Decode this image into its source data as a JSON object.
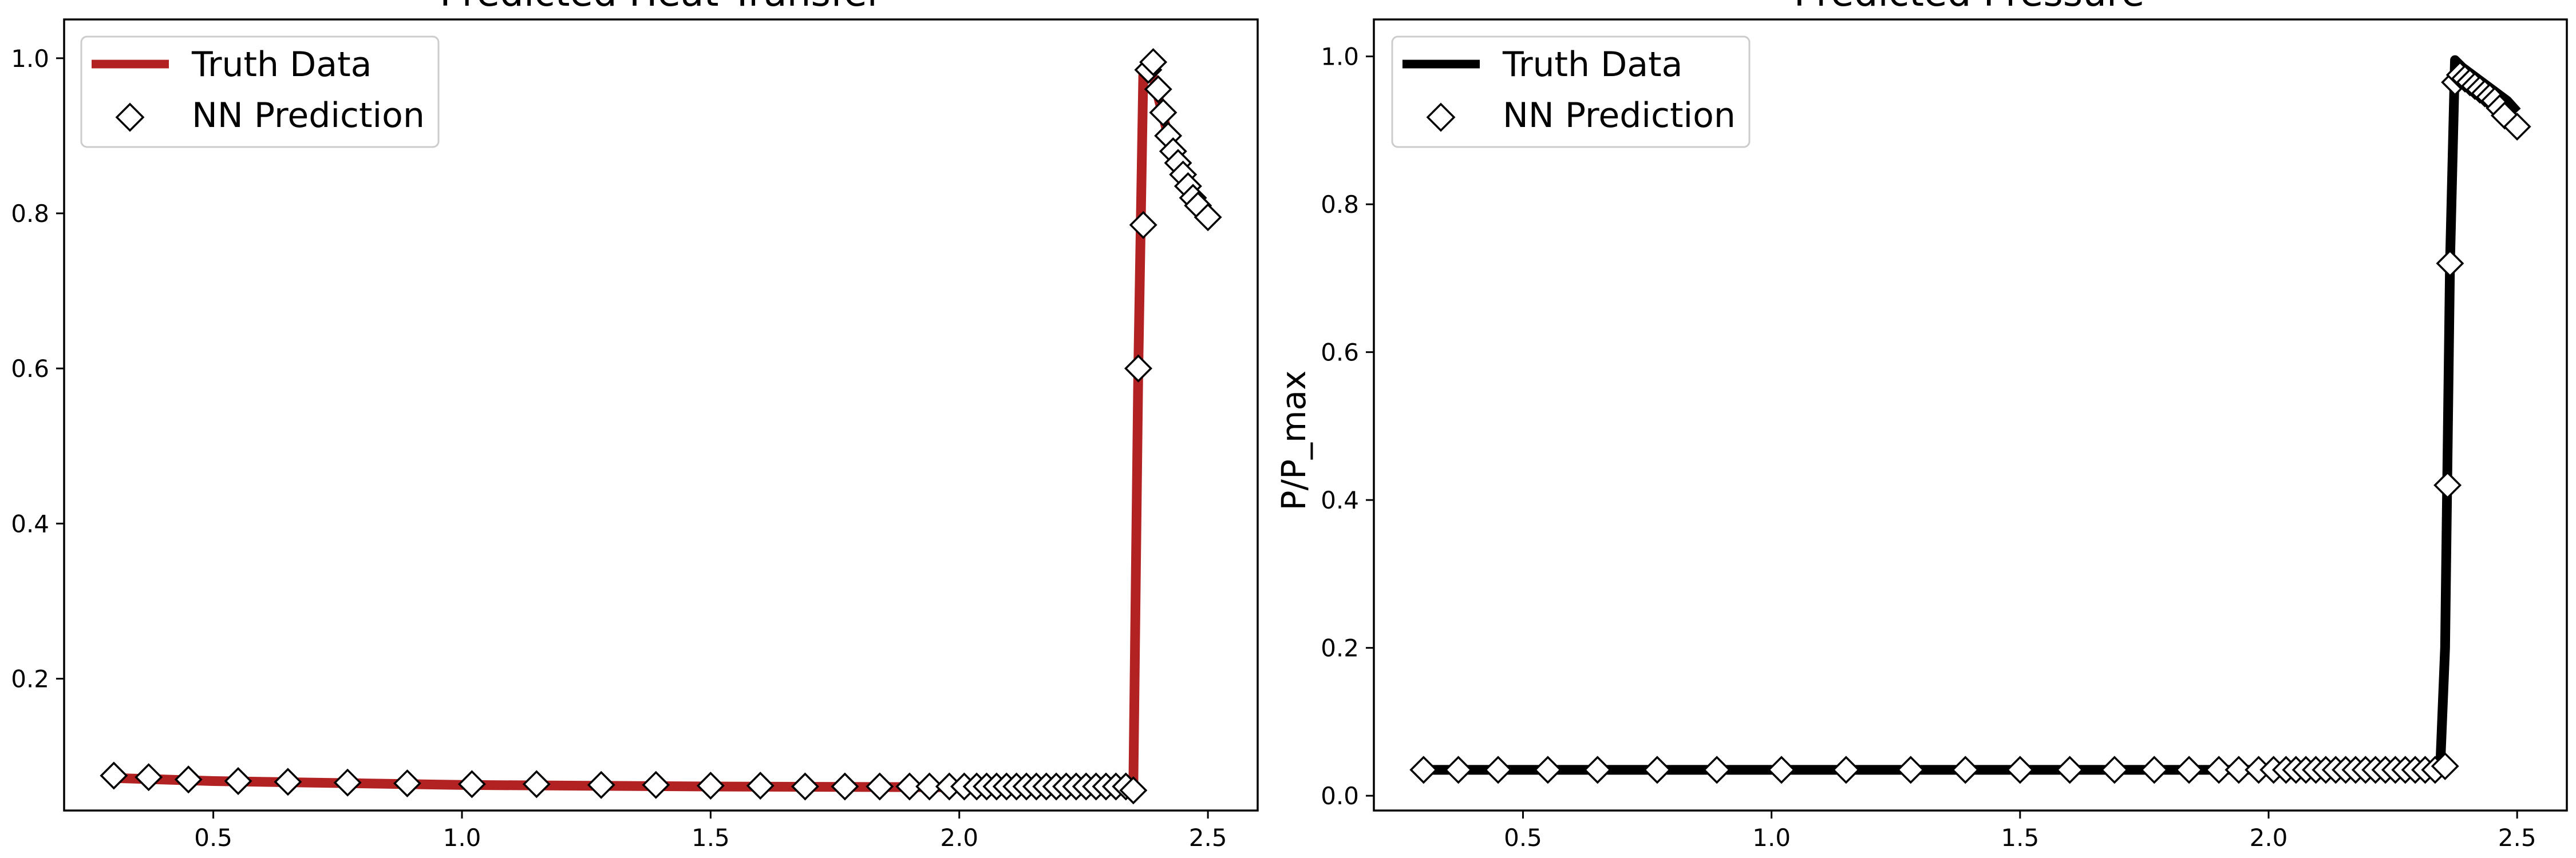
{
  "chart_data": [
    {
      "type": "line",
      "title": "Predicted Heat Transfer",
      "xlabel": "",
      "ylabel": "",
      "xlim": [
        0.2,
        2.6
      ],
      "ylim": [
        0.03,
        1.05
      ],
      "xticks": [
        0.5,
        1.0,
        1.5,
        2.0,
        2.5
      ],
      "xtick_labels": [
        "0.5",
        "1.0",
        "1.5",
        "2.0",
        "2.5"
      ],
      "yticks": [
        0.2,
        0.4,
        0.6,
        0.8,
        1.0
      ],
      "ytick_labels": [
        "0.2",
        "0.4",
        "0.6",
        "0.8",
        "1.0"
      ],
      "grid": false,
      "legend_position": "top-left",
      "series": [
        {
          "name": "Truth Data",
          "kind": "line",
          "color": "#b22222",
          "x": [
            0.3,
            0.5,
            1.0,
            1.5,
            2.0,
            2.34,
            2.35,
            2.36,
            2.37,
            2.38,
            2.39,
            2.4,
            2.42,
            2.44,
            2.46,
            2.48,
            2.5
          ],
          "y": [
            0.072,
            0.068,
            0.063,
            0.061,
            0.06,
            0.06,
            0.06,
            0.6,
            0.98,
            0.99,
            0.975,
            0.95,
            0.9,
            0.87,
            0.84,
            0.82,
            0.795
          ]
        },
        {
          "name": "NN Prediction",
          "kind": "marker",
          "marker": "diamond",
          "x": [
            0.3,
            0.37,
            0.45,
            0.55,
            0.65,
            0.77,
            0.89,
            1.02,
            1.15,
            1.28,
            1.39,
            1.5,
            1.6,
            1.69,
            1.77,
            1.84,
            1.9,
            1.94,
            1.98,
            2.01,
            2.035,
            2.055,
            2.075,
            2.095,
            2.115,
            2.135,
            2.155,
            2.175,
            2.195,
            2.215,
            2.235,
            2.255,
            2.275,
            2.295,
            2.315,
            2.335,
            2.35,
            2.36,
            2.37,
            2.38,
            2.39,
            2.4,
            2.41,
            2.42,
            2.43,
            2.44,
            2.45,
            2.46,
            2.47,
            2.48,
            2.5
          ],
          "y": [
            0.075,
            0.073,
            0.07,
            0.068,
            0.067,
            0.066,
            0.065,
            0.064,
            0.064,
            0.063,
            0.063,
            0.062,
            0.062,
            0.061,
            0.061,
            0.061,
            0.061,
            0.061,
            0.061,
            0.061,
            0.061,
            0.061,
            0.061,
            0.061,
            0.061,
            0.061,
            0.061,
            0.061,
            0.061,
            0.061,
            0.061,
            0.061,
            0.061,
            0.061,
            0.061,
            0.061,
            0.056,
            0.6,
            0.785,
            0.985,
            0.995,
            0.96,
            0.93,
            0.9,
            0.88,
            0.865,
            0.85,
            0.835,
            0.82,
            0.81,
            0.795
          ]
        }
      ]
    },
    {
      "type": "line",
      "title": "Predicted Pressure",
      "xlabel": "",
      "ylabel": "P/P_max",
      "xlim": [
        0.2,
        2.6
      ],
      "ylim": [
        -0.02,
        1.05
      ],
      "xticks": [
        0.5,
        1.0,
        1.5,
        2.0,
        2.5
      ],
      "xtick_labels": [
        "0.5",
        "1.0",
        "1.5",
        "2.0",
        "2.5"
      ],
      "yticks": [
        0.0,
        0.2,
        0.4,
        0.6,
        0.8,
        1.0
      ],
      "ytick_labels": [
        "0.0",
        "0.2",
        "0.4",
        "0.6",
        "0.8",
        "1.0"
      ],
      "grid": false,
      "legend_position": "top-left",
      "series": [
        {
          "name": "Truth Data",
          "kind": "line",
          "color": "#000000",
          "x": [
            0.3,
            1.0,
            2.0,
            2.345,
            2.355,
            2.365,
            2.375,
            2.39,
            2.42,
            2.45,
            2.48,
            2.5
          ],
          "y": [
            0.035,
            0.035,
            0.035,
            0.035,
            0.2,
            0.72,
            0.995,
            0.985,
            0.97,
            0.955,
            0.94,
            0.925
          ]
        },
        {
          "name": "NN Prediction",
          "kind": "marker",
          "marker": "diamond",
          "x": [
            0.3,
            0.37,
            0.45,
            0.55,
            0.65,
            0.77,
            0.89,
            1.02,
            1.15,
            1.28,
            1.39,
            1.5,
            1.6,
            1.69,
            1.77,
            1.84,
            1.9,
            1.94,
            1.98,
            2.01,
            2.035,
            2.055,
            2.075,
            2.095,
            2.115,
            2.135,
            2.155,
            2.175,
            2.195,
            2.215,
            2.235,
            2.255,
            2.275,
            2.295,
            2.315,
            2.335,
            2.355,
            2.36,
            2.365,
            2.375,
            2.385,
            2.395,
            2.405,
            2.415,
            2.425,
            2.435,
            2.445,
            2.455,
            2.465,
            2.475,
            2.5
          ],
          "y": [
            0.035,
            0.035,
            0.035,
            0.035,
            0.035,
            0.035,
            0.035,
            0.035,
            0.035,
            0.035,
            0.035,
            0.035,
            0.035,
            0.035,
            0.035,
            0.035,
            0.035,
            0.035,
            0.035,
            0.035,
            0.035,
            0.035,
            0.035,
            0.035,
            0.035,
            0.035,
            0.035,
            0.035,
            0.035,
            0.035,
            0.035,
            0.035,
            0.035,
            0.035,
            0.035,
            0.035,
            0.04,
            0.42,
            0.72,
            0.965,
            0.975,
            0.97,
            0.965,
            0.96,
            0.955,
            0.95,
            0.945,
            0.94,
            0.93,
            0.92,
            0.905
          ]
        }
      ]
    }
  ]
}
